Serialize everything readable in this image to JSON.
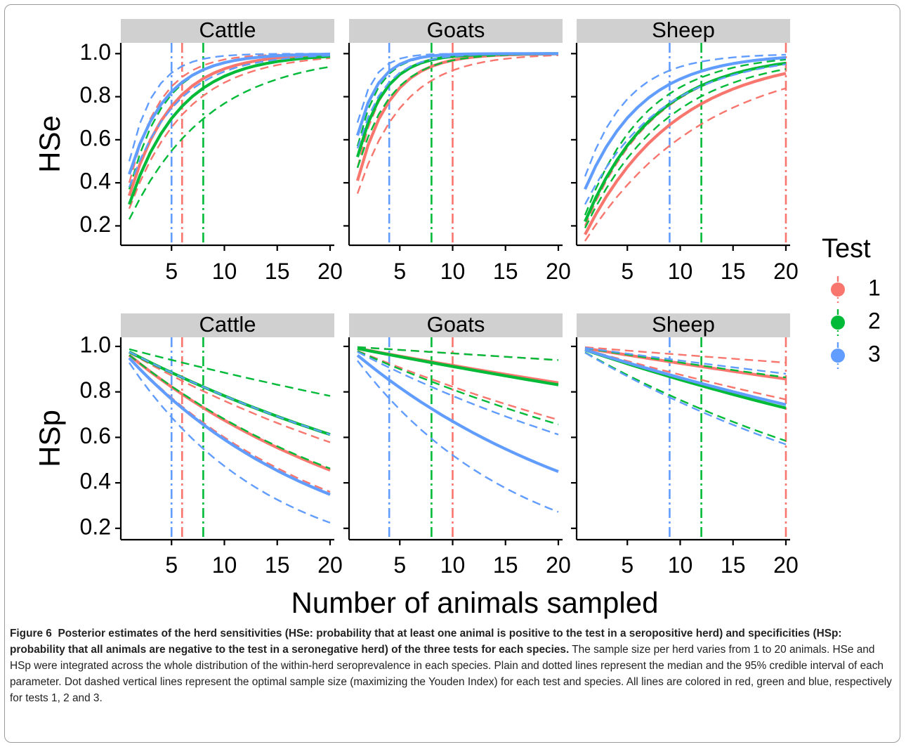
{
  "chart_data": {
    "type": "line",
    "xlabel": "Number of animals sampled",
    "x": [
      1,
      2,
      3,
      4,
      5,
      6,
      7,
      8,
      9,
      10,
      11,
      12,
      13,
      14,
      15,
      16,
      17,
      18,
      19,
      20
    ],
    "xticks": [
      5,
      10,
      15,
      20
    ],
    "xlim": [
      0.2,
      20.4
    ],
    "legend": {
      "title": "Test",
      "entries": [
        "1",
        "2",
        "3"
      ],
      "position": "right"
    },
    "colors": {
      "1": "#F8766D",
      "2": "#00BA38",
      "3": "#619CFF"
    },
    "rows": [
      {
        "ylabel": "HSe",
        "yticks": [
          "0.2",
          "0.4",
          "0.6",
          "0.8",
          "1.0"
        ],
        "yticks_num": [
          0.2,
          0.4,
          0.6,
          0.8,
          1.0
        ],
        "ylim": [
          0.11,
          1.05
        ],
        "panels": [
          {
            "strip": "Cattle",
            "optimal_n": {
              "1": 6,
              "2": 8,
              "3": 5
            },
            "series": [
              {
                "test": "1",
                "a": 0.34,
                "k": 0.22,
                "lo_a": 0.28,
                "lo_k": 0.17,
                "hi_a": 0.4,
                "hi_k": 0.29
              },
              {
                "test": "2",
                "a": 0.3,
                "k": 0.19,
                "lo_a": 0.23,
                "lo_k": 0.125,
                "hi_a": 0.37,
                "hi_k": 0.26
              },
              {
                "test": "3",
                "a": 0.44,
                "k": 0.25,
                "lo_a": 0.38,
                "lo_k": 0.2,
                "hi_a": 0.5,
                "hi_k": 0.35
              }
            ]
          },
          {
            "strip": "Goats",
            "optimal_n": {
              "1": 10,
              "2": 8,
              "3": 4
            },
            "series": [
              {
                "test": "1",
                "a": 0.41,
                "k": 0.28,
                "lo_a": 0.35,
                "lo_k": 0.21,
                "hi_a": 0.47,
                "hi_k": 0.35
              },
              {
                "test": "2",
                "a": 0.52,
                "k": 0.33,
                "lo_a": 0.47,
                "lo_k": 0.27,
                "hi_a": 0.57,
                "hi_k": 0.4
              },
              {
                "test": "3",
                "a": 0.62,
                "k": 0.4,
                "lo_a": 0.56,
                "lo_k": 0.33,
                "hi_a": 0.68,
                "hi_k": 0.48
              }
            ]
          },
          {
            "strip": "Sheep",
            "optimal_n": {
              "1": 20,
              "2": 12,
              "3": 9
            },
            "series": [
              {
                "test": "1",
                "a": 0.16,
                "k": 0.11,
                "lo_a": 0.13,
                "lo_k": 0.085,
                "hi_a": 0.2,
                "hi_k": 0.14
              },
              {
                "test": "2",
                "a": 0.22,
                "k": 0.14,
                "lo_a": 0.19,
                "lo_k": 0.12,
                "hi_a": 0.25,
                "hi_k": 0.16
              },
              {
                "test": "3",
                "a": 0.37,
                "k": 0.17,
                "lo_a": 0.3,
                "lo_k": 0.13,
                "hi_a": 0.43,
                "hi_k": 0.22
              }
            ]
          }
        ]
      },
      {
        "ylabel": "HSp",
        "yticks": [
          "0.2",
          "0.4",
          "0.6",
          "0.8",
          "1.0"
        ],
        "yticks_num": [
          0.2,
          0.4,
          0.6,
          0.8,
          1.0
        ],
        "ylim": [
          0.15,
          1.04
        ],
        "panels": [
          {
            "strip": "Cattle",
            "optimal_n": {
              "1": 6,
              "2": 8,
              "3": 5
            },
            "series": [
              {
                "test": "1",
                "s": 0.9615,
                "lo": 0.9502,
                "hi": 0.973
              },
              {
                "test": "2",
                "s": 0.9758,
                "lo": 0.9622,
                "hi": 0.9878
              },
              {
                "test": "3",
                "s": 0.9487,
                "lo": 0.928,
                "hi": 0.9758
              }
            ]
          },
          {
            "strip": "Goats",
            "optimal_n": {
              "1": 10,
              "2": 8,
              "3": 4
            },
            "series": [
              {
                "test": "1",
                "s": 0.9913,
                "lo": 0.9807,
                "hi": 0.9969
              },
              {
                "test": "2",
                "s": 0.9908,
                "lo": 0.9792,
                "hi": 0.9969
              },
              {
                "test": "3",
                "s": 0.9608,
                "lo": 0.937,
                "hi": 0.9758
              }
            ]
          },
          {
            "strip": "Sheep",
            "optimal_n": {
              "1": 20,
              "2": 12,
              "3": 9
            },
            "series": [
              {
                "test": "1",
                "s": 0.9923,
                "lo": 0.9868,
                "hi": 0.9963
              },
              {
                "test": "2",
                "s": 0.9843,
                "lo": 0.9735,
                "hi": 0.9927
              },
              {
                "test": "3",
                "s": 0.9853,
                "lo": 0.9722,
                "hi": 0.9936
              }
            ]
          }
        ]
      }
    ]
  },
  "caption": {
    "label": "Figure 6",
    "title": "Posterior estimates of the herd sensitivities (HSe: probability that at least one animal is positive to the test in a seropositive herd) and specificities (HSp: probability that all animals are negative to the test in a seronegative herd) of the three tests for each species.",
    "body": "The sample size per herd varies from 1 to 20 animals. HSe and HSp were integrated across the whole distribution of the within-herd seroprevalence in each species. Plain and dotted lines represent the median and the 95% credible interval of each parameter. Dot dashed vertical lines represent the optimal sample size (maximizing the Youden Index) for each test and species. All lines are colored in red, green and blue, respectively for tests 1, 2 and 3."
  }
}
